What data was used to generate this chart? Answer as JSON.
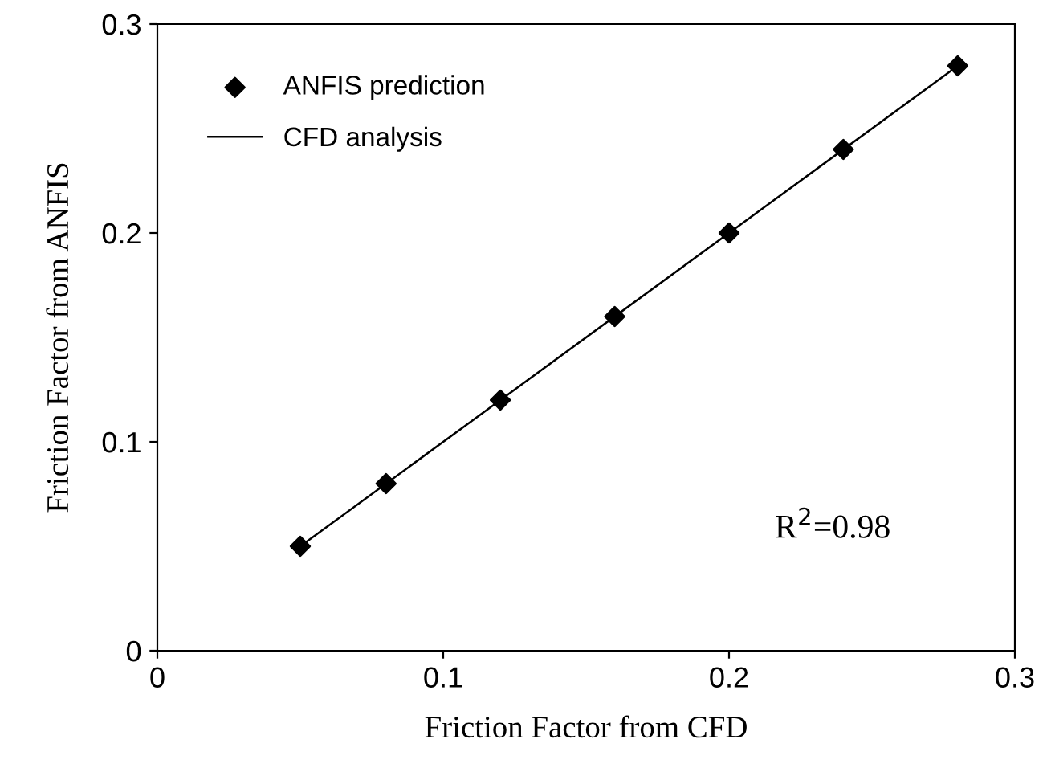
{
  "chart_data": {
    "type": "scatter",
    "xlabel": "Friction Factor from CFD",
    "ylabel": "Friction Factor from ANFIS",
    "xlim": [
      0,
      0.3
    ],
    "xticks": [
      0,
      0.1,
      0.2,
      0.3
    ],
    "ylim": [
      0,
      0.3
    ],
    "yticks": [
      0,
      0.1,
      0.2,
      0.3
    ],
    "grid": false,
    "legend": "top left",
    "series": [
      {
        "name": "ANFIS prediction",
        "marker": "diamond",
        "color": "#000000",
        "x": [
          0.05,
          0.08,
          0.12,
          0.16,
          0.2,
          0.24,
          0.28
        ],
        "values": [
          0.05,
          0.08,
          0.12,
          0.16,
          0.2,
          0.24,
          0.28
        ]
      },
      {
        "name": "CFD analysis",
        "type": "line",
        "color": "#000000",
        "x": [
          0.05,
          0.28
        ],
        "values": [
          0.05,
          0.28
        ]
      }
    ],
    "annotations": [
      "R$^{2}$=0.98"
    ]
  }
}
